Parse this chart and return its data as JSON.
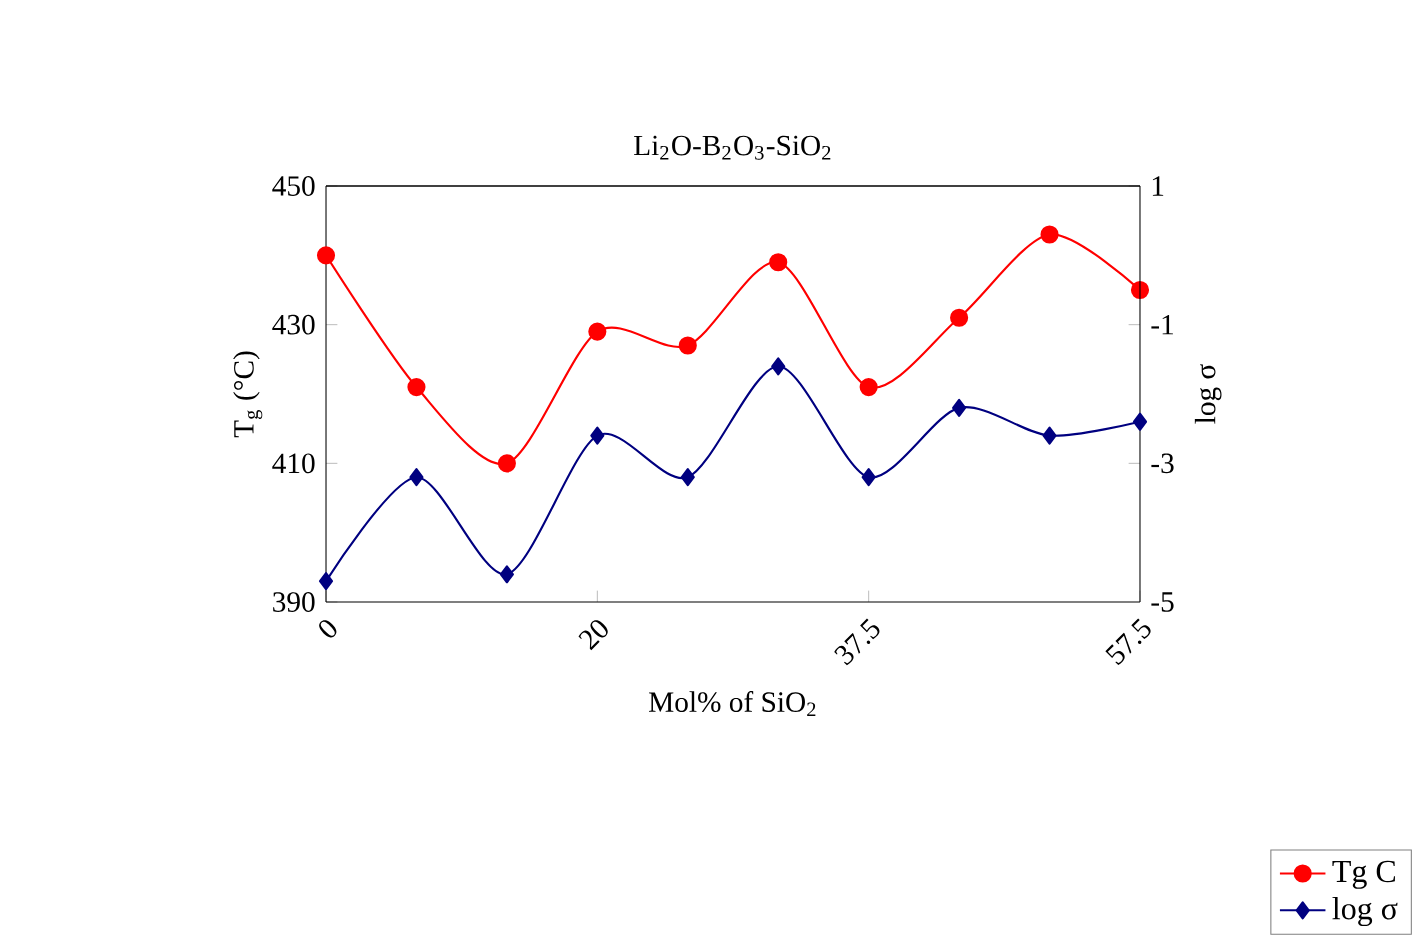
{
  "chart_data": {
    "type": "line",
    "title": "Li$_{2}$O-B$_{2}$O$_{3}$-SiO$_{2}$",
    "xlabel": "Mol% of SiO$_{2}$",
    "ylabel": "T$_{g}$ (°C)",
    "y2label": "log σ",
    "categories": [
      "0",
      null,
      null,
      "20",
      null,
      null,
      "37.5",
      null,
      null,
      "57.5"
    ],
    "series": [
      {
        "name": "Tg C",
        "color": "#ff0000",
        "marker": "circle",
        "values": [
          440,
          421,
          410,
          429,
          427,
          439,
          421,
          431,
          443,
          435
        ]
      },
      {
        "name": "log σ",
        "color": "#000080",
        "marker": "diamond",
        "axis": "y2",
        "values": [
          -4.7,
          -3.2,
          -4.6,
          -2.6,
          -3.2,
          -1.6,
          -3.2,
          -2.2,
          -2.6,
          -2.4
        ]
      }
    ],
    "ylim": [
      390,
      450
    ],
    "yticks": [
      390,
      410,
      430,
      450
    ],
    "y2lim": [
      -5,
      1
    ],
    "y2ticks": [
      -5,
      -3,
      -1,
      1
    ],
    "legend": "bottom right"
  }
}
